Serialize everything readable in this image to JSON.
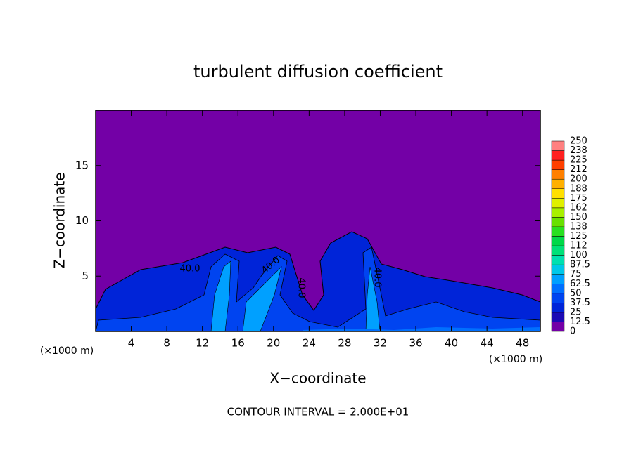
{
  "chart_data": {
    "type": "contour",
    "title": "turbulent diffusion coefficient",
    "x_label": "X−coordinate",
    "y_label": "Z−coordinate",
    "x_unit_labels": [
      "(×1000 m)",
      "(×1000 m)"
    ],
    "footer": "CONTOUR INTERVAL = 2.000E+01",
    "xlim": [
      0,
      50
    ],
    "ylim": [
      0,
      20
    ],
    "xticks": [
      4,
      8,
      12,
      16,
      20,
      24,
      28,
      32,
      36,
      40,
      44,
      48
    ],
    "yticks": [
      5,
      10,
      15
    ],
    "levels": [
      0,
      12.5,
      25,
      37.5,
      50,
      62.5,
      75,
      87.5,
      100,
      {
        "value": 112.5,
        "label": "112"
      },
      125,
      {
        "value": 137.5,
        "label": "138"
      },
      150,
      {
        "value": 162.5,
        "label": "162"
      },
      175,
      {
        "value": 187.5,
        "label": "188"
      },
      200,
      {
        "value": 212.5,
        "label": "212"
      },
      225,
      {
        "value": 237.5,
        "label": "238"
      },
      250
    ],
    "colors": [
      "#7300a6",
      "#1c0ab4",
      "#0024d8",
      "#0044f0",
      "#0070ff",
      "#00a0ff",
      "#00c8e8",
      "#00e0b0",
      "#00e078",
      "#00d848",
      "#28e020",
      "#68e000",
      "#a8f000",
      "#e0f000",
      "#ffe000",
      "#ffb000",
      "#ff8000",
      "#ff4000",
      "#ff2020",
      "#ff8080"
    ],
    "annotations": [
      "40.0",
      "40.0",
      "40.0",
      "40.0"
    ]
  }
}
